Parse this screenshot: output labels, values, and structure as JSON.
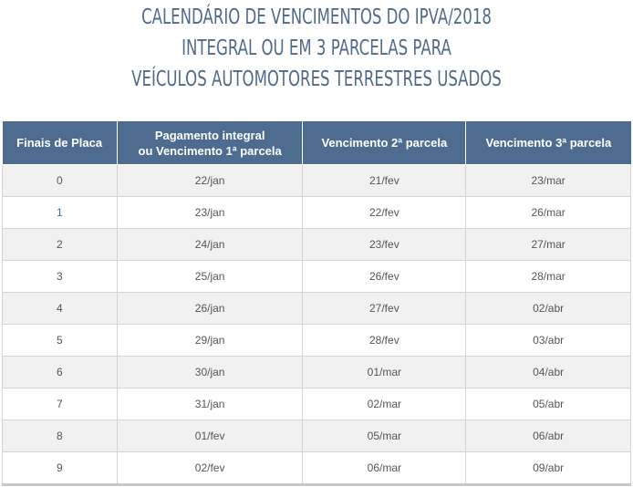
{
  "title_lines": [
    "CALENDÁRIO DE VENCIMENTOS DO IPVA/2018",
    "INTEGRAL OU EM 3 PARCELAS PARA",
    "VEÍCULOS AUTOMOTORES TERRESTRES USADOS"
  ],
  "table": {
    "headers": [
      "Finais de Placa",
      "Pagamento integral",
      "ou Vencimento 1ª parcela",
      "Vencimento 2ª parcela",
      "Vencimento 3ª parcela"
    ],
    "rows": [
      [
        "0",
        "22/jan",
        "21/fev",
        "23/mar"
      ],
      [
        "1",
        "23/jan",
        "22/fev",
        "26/mar"
      ],
      [
        "2",
        "24/jan",
        "23/fev",
        "27/mar"
      ],
      [
        "3",
        "25/jan",
        "26/fev",
        "28/mar"
      ],
      [
        "4",
        "26/jan",
        "27/fev",
        "02/abr"
      ],
      [
        "5",
        "29/jan",
        "28/fev",
        "03/abr"
      ],
      [
        "6",
        "30/jan",
        "01/mar",
        "04/abr"
      ],
      [
        "7",
        "31/jan",
        "02/mar",
        "05/abr"
      ],
      [
        "8",
        "01/fev",
        "05/mar",
        "06/abr"
      ],
      [
        "9",
        "02/fev",
        "06/mar",
        "09/abr"
      ]
    ]
  }
}
